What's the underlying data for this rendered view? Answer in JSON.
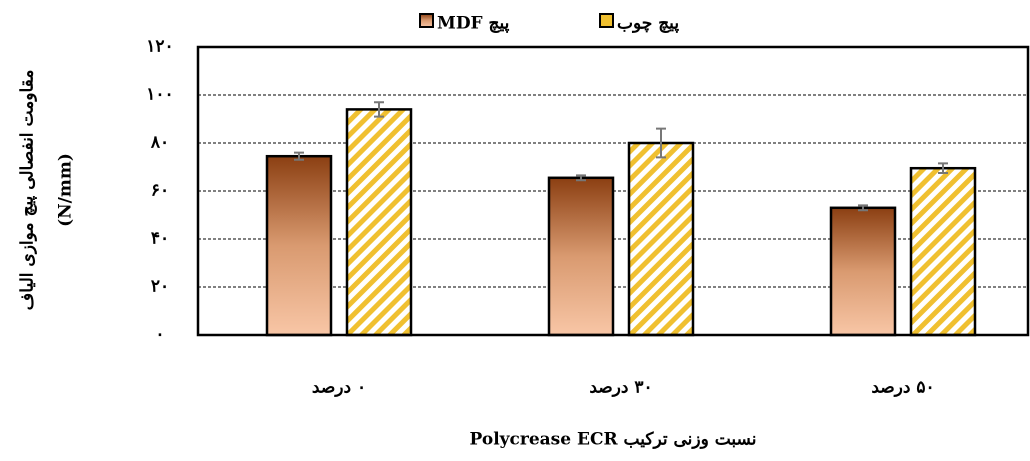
{
  "chart_data": {
    "type": "bar",
    "y_label": [
      "مقاومت انفصالی پیچ موازی الیاف",
      "(N/mm)"
    ],
    "x_label": "نسبت وزنی ترکیب Polycrease ECR",
    "categories": [
      "۰ درصد",
      "۳۰ درصد",
      "۵۰ درصد"
    ],
    "series": [
      {
        "name": "پیچ MDF",
        "color": "#a0522d",
        "values": [
          74.5,
          65.5,
          53
        ],
        "errors": [
          1.5,
          1,
          1
        ]
      },
      {
        "name": "پیچ چوب",
        "color": "#f0c030",
        "values": [
          94,
          80,
          69.5
        ],
        "errors": [
          3,
          6,
          2
        ]
      }
    ],
    "ylim": [
      0,
      120
    ],
    "yticks": [
      {
        "value": 0,
        "label": "۰"
      },
      {
        "value": 20,
        "label": "۲۰"
      },
      {
        "value": 40,
        "label": "۴۰"
      },
      {
        "value": 60,
        "label": "۶۰"
      },
      {
        "value": 80,
        "label": "۸۰"
      },
      {
        "value": 100,
        "label": "۱۰۰"
      },
      {
        "value": 120,
        "label": "۱۲۰"
      }
    ],
    "grid": true,
    "legend": "top"
  }
}
